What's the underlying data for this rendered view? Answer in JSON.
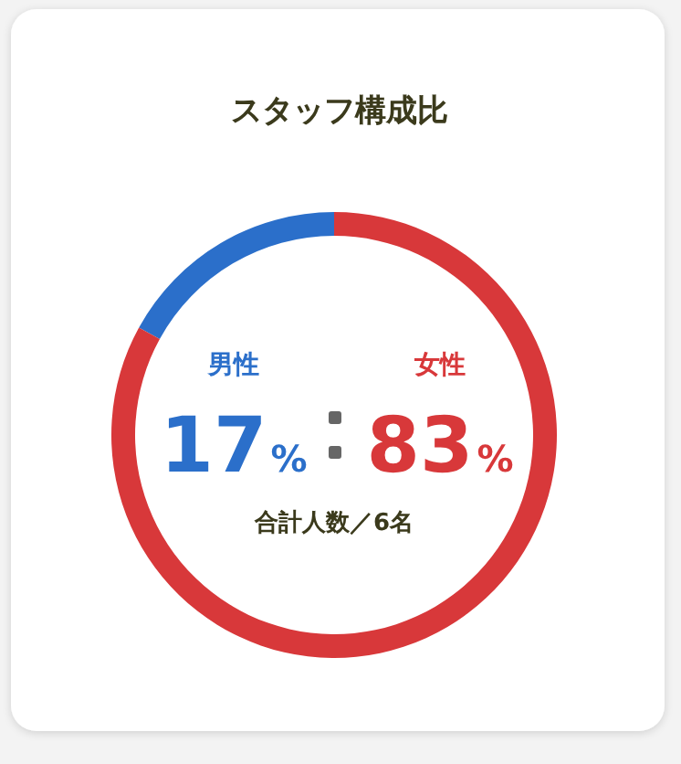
{
  "chart_data": {
    "type": "donut",
    "title": "スタッフ構成比",
    "categories": [
      "男性",
      "女性"
    ],
    "values": [
      17,
      83
    ],
    "colors": [
      "#2b6fca",
      "#d8383a"
    ],
    "value_labels": [
      "17%",
      "83%"
    ],
    "annotations": [
      "合計人数／6名"
    ]
  }
}
